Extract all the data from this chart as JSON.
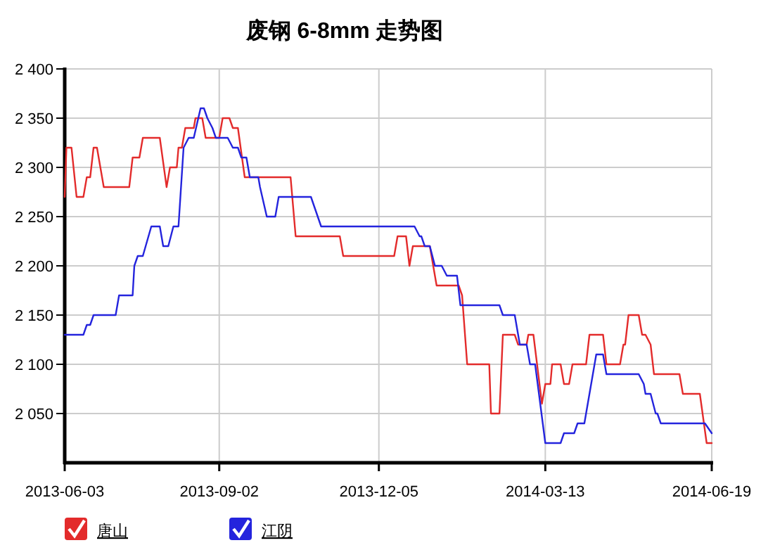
{
  "chart_data": {
    "type": "line",
    "title": "废钢 6-8mm 走势图",
    "xlim": [
      "2013-06-03",
      "2014-06-19"
    ],
    "xticks": [
      "2013-06-03",
      "2013-09-02",
      "2013-12-05",
      "2014-03-13",
      "2014-06-19"
    ],
    "ylim": [
      2000,
      2400
    ],
    "yticks": [
      {
        "value": 2050,
        "label": "2 050"
      },
      {
        "value": 2100,
        "label": "2 100"
      },
      {
        "value": 2150,
        "label": "2 150"
      },
      {
        "value": 2200,
        "label": "2 200"
      },
      {
        "value": 2250,
        "label": "2 250"
      },
      {
        "value": 2300,
        "label": "2 300"
      },
      {
        "value": 2350,
        "label": "2 350"
      },
      {
        "value": 2400,
        "label": "2 400"
      }
    ],
    "grid": true,
    "legend": "bottom left",
    "series": [
      {
        "name": "唐山",
        "color": "#e32b2b",
        "x": [
          "2013-06-03",
          "2013-06-04",
          "2013-06-07",
          "2013-06-10",
          "2013-06-14",
          "2013-06-16",
          "2013-06-18",
          "2013-06-20",
          "2013-06-22",
          "2013-06-26",
          "2013-07-11",
          "2013-07-13",
          "2013-07-17",
          "2013-07-19",
          "2013-07-29",
          "2013-08-02",
          "2013-08-04",
          "2013-08-08",
          "2013-08-09",
          "2013-08-11",
          "2013-08-13",
          "2013-08-18",
          "2013-08-19",
          "2013-08-23",
          "2013-08-25",
          "2013-09-02",
          "2013-09-04",
          "2013-09-08",
          "2013-09-10",
          "2013-09-13",
          "2013-09-17",
          "2013-10-14",
          "2013-10-17",
          "2013-11-12",
          "2013-11-14",
          "2013-12-14",
          "2013-12-16",
          "2013-12-21",
          "2013-12-23",
          "2013-12-25",
          "2014-01-04",
          "2014-01-06",
          "2014-01-08",
          "2014-01-21",
          "2014-01-23",
          "2014-01-26",
          "2014-02-08",
          "2014-02-09",
          "2014-02-14",
          "2014-02-16",
          "2014-02-23",
          "2014-02-25",
          "2014-03-02",
          "2014-03-03",
          "2014-03-06",
          "2014-03-11",
          "2014-03-13",
          "2014-03-16",
          "2014-03-17",
          "2014-03-22",
          "2014-03-24",
          "2014-03-27",
          "2014-03-29",
          "2014-04-06",
          "2014-04-08",
          "2014-04-16",
          "2014-04-18",
          "2014-04-26",
          "2014-04-28",
          "2014-04-29",
          "2014-05-01",
          "2014-05-07",
          "2014-05-09",
          "2014-05-11",
          "2014-05-14",
          "2014-05-16",
          "2014-05-31",
          "2014-06-02",
          "2014-06-12",
          "2014-06-16",
          "2014-06-19"
        ],
        "values": [
          2270,
          2320,
          2320,
          2270,
          2270,
          2290,
          2290,
          2320,
          2320,
          2280,
          2280,
          2310,
          2310,
          2330,
          2330,
          2280,
          2300,
          2300,
          2320,
          2320,
          2340,
          2340,
          2350,
          2350,
          2330,
          2330,
          2350,
          2350,
          2340,
          2340,
          2290,
          2290,
          2230,
          2230,
          2210,
          2210,
          2230,
          2230,
          2200,
          2220,
          2220,
          2200,
          2180,
          2180,
          2170,
          2100,
          2100,
          2050,
          2050,
          2130,
          2130,
          2120,
          2120,
          2130,
          2130,
          2060,
          2080,
          2080,
          2100,
          2100,
          2080,
          2080,
          2100,
          2100,
          2130,
          2130,
          2100,
          2100,
          2120,
          2120,
          2150,
          2150,
          2130,
          2130,
          2120,
          2090,
          2090,
          2070,
          2070,
          2020,
          2020
        ]
      },
      {
        "name": "江阴",
        "color": "#2424dd",
        "x": [
          "2013-06-03",
          "2013-06-14",
          "2013-06-16",
          "2013-06-18",
          "2013-06-20",
          "2013-07-03",
          "2013-07-05",
          "2013-07-13",
          "2013-07-14",
          "2013-07-16",
          "2013-07-19",
          "2013-07-24",
          "2013-07-29",
          "2013-07-31",
          "2013-08-03",
          "2013-08-06",
          "2013-08-09",
          "2013-08-12",
          "2013-08-15",
          "2013-08-18",
          "2013-08-22",
          "2013-08-24",
          "2013-08-26",
          "2013-08-29",
          "2013-08-31",
          "2013-09-07",
          "2013-09-10",
          "2013-09-13",
          "2013-09-15",
          "2013-09-18",
          "2013-09-20",
          "2013-09-25",
          "2013-09-26",
          "2013-09-30",
          "2013-10-05",
          "2013-10-07",
          "2013-10-26",
          "2013-10-28",
          "2013-11-01",
          "2013-12-26",
          "2013-12-29",
          "2013-12-30",
          "2014-01-01",
          "2014-01-04",
          "2014-01-07",
          "2014-01-11",
          "2014-01-14",
          "2014-01-20",
          "2014-01-22",
          "2014-02-14",
          "2014-02-16",
          "2014-02-23",
          "2014-02-26",
          "2014-03-02",
          "2014-03-04",
          "2014-03-07",
          "2014-03-13",
          "2014-03-22",
          "2014-03-24",
          "2014-03-30",
          "2014-04-01",
          "2014-04-05",
          "2014-04-06",
          "2014-04-12",
          "2014-04-16",
          "2014-04-18",
          "2014-05-07",
          "2014-05-10",
          "2014-05-11",
          "2014-05-14",
          "2014-05-17",
          "2014-05-18",
          "2014-05-20",
          "2014-06-15",
          "2014-06-19"
        ],
        "values": [
          2130,
          2130,
          2140,
          2140,
          2150,
          2150,
          2170,
          2170,
          2200,
          2210,
          2210,
          2240,
          2240,
          2220,
          2220,
          2240,
          2240,
          2320,
          2330,
          2330,
          2360,
          2360,
          2350,
          2340,
          2330,
          2330,
          2320,
          2320,
          2310,
          2310,
          2290,
          2290,
          2280,
          2250,
          2250,
          2270,
          2270,
          2260,
          2240,
          2240,
          2230,
          2230,
          2220,
          2220,
          2200,
          2200,
          2190,
          2190,
          2160,
          2160,
          2150,
          2150,
          2120,
          2120,
          2100,
          2100,
          2020,
          2020,
          2030,
          2030,
          2040,
          2040,
          2050,
          2110,
          2110,
          2090,
          2090,
          2080,
          2070,
          2070,
          2050,
          2050,
          2040,
          2040,
          2030
        ]
      }
    ]
  }
}
